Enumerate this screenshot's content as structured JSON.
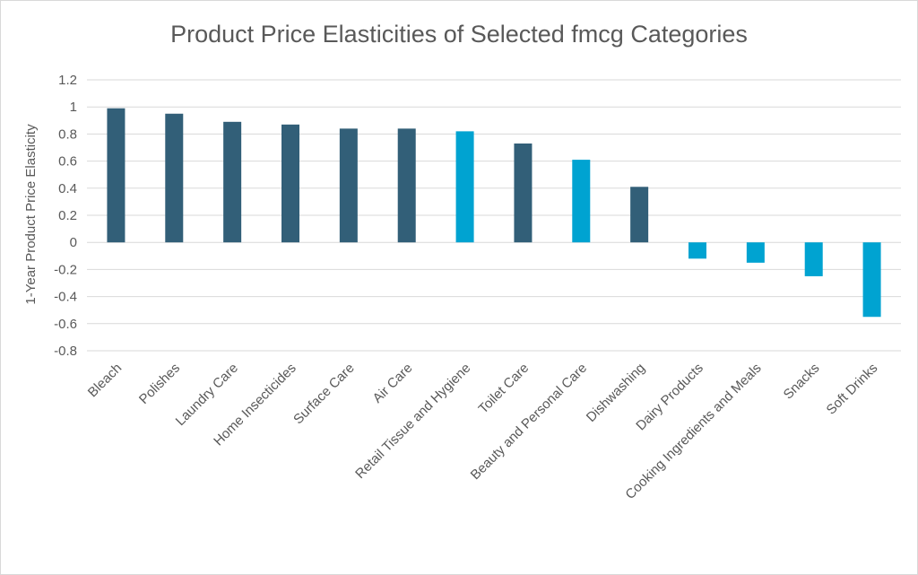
{
  "chart_data": {
    "type": "bar",
    "title": "Product Price Elasticities of Selected fmcg Categories",
    "xlabel": "",
    "ylabel": "1-Year Product Price Elasticity",
    "ylim": [
      -0.8,
      1.2
    ],
    "y_ticks": [
      "1.2",
      "1",
      "0.8",
      "0.6",
      "0.4",
      "0.2",
      "0",
      "-0.2",
      "-0.4",
      "-0.6",
      "-0.8"
    ],
    "grid": true,
    "legend": "none",
    "categories": [
      "Bleach",
      "Polishes",
      "Laundry Care",
      "Home Insecticides",
      "Surface Care",
      "Air Care",
      "Retail Tissue and Hygiene",
      "Toilet Care",
      "Beauty and Personal Care",
      "Dishwashing",
      "Dairy Products",
      "Cooking Ingredients and Meals",
      "Snacks",
      "Soft Drinks"
    ],
    "values": [
      0.99,
      0.95,
      0.89,
      0.87,
      0.84,
      0.84,
      0.82,
      0.73,
      0.61,
      0.41,
      -0.12,
      -0.15,
      -0.25,
      -0.55
    ],
    "highlight": [
      false,
      false,
      false,
      false,
      false,
      false,
      true,
      false,
      true,
      false,
      true,
      true,
      true,
      true
    ],
    "colors": {
      "default": "#325F78",
      "highlight": "#00A3D1"
    }
  }
}
